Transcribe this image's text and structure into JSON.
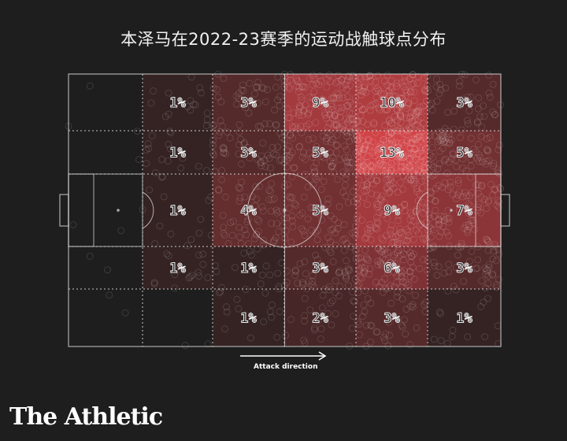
{
  "title": "本泽马在2022-23赛季的运动战触球点分布",
  "attack_label": "Attack direction",
  "brand": "The Athletic",
  "colors": {
    "background": "#1e1e1e",
    "heat_high": "#e0474c",
    "line": "#d8d8d8"
  },
  "chart_data": {
    "type": "heatmap",
    "title": "本泽马在2022-23赛季的运动战触球点分布",
    "columns": 6,
    "rows": 5,
    "unit": "%",
    "cells": [
      [
        0,
        1,
        3,
        9,
        10,
        3
      ],
      [
        0,
        1,
        3,
        5,
        13,
        5
      ],
      [
        0,
        1,
        4,
        5,
        9,
        7
      ],
      [
        0,
        1,
        1,
        3,
        6,
        3
      ],
      [
        0,
        0,
        1,
        2,
        3,
        1
      ]
    ],
    "labels": [
      [
        "",
        "1%",
        "3%",
        "9%",
        "10%",
        "3%"
      ],
      [
        "",
        "1%",
        "3%",
        "5%",
        "13%",
        "5%"
      ],
      [
        "",
        "1%",
        "4%",
        "5%",
        "9%",
        "7%"
      ],
      [
        "",
        "1%",
        "1%",
        "3%",
        "6%",
        "3%"
      ],
      [
        "",
        "",
        "1%",
        "2%",
        "3%",
        "1%"
      ]
    ],
    "attack_direction": "right"
  }
}
